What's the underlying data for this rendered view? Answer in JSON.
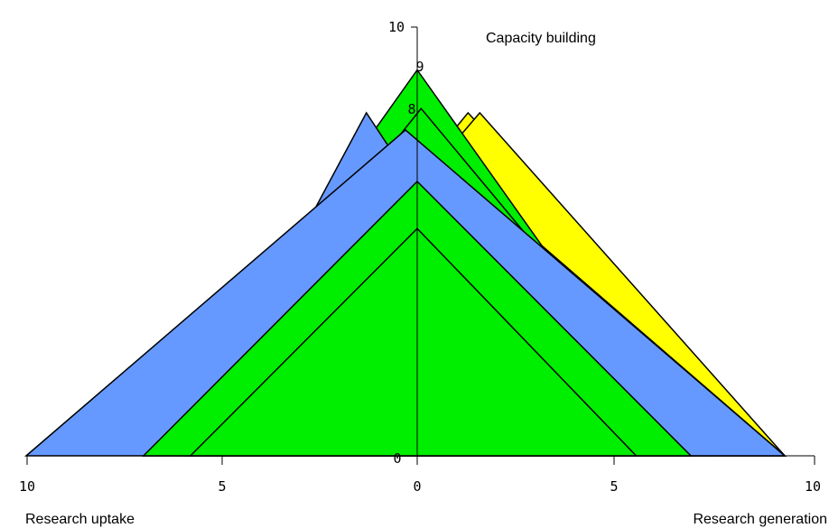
{
  "chart_data": {
    "type": "area",
    "axes": {
      "vertical": {
        "label": "Capacity building",
        "ticks": [
          "10",
          "9",
          "8",
          "0"
        ],
        "range": [
          0,
          10
        ]
      },
      "left": {
        "label": "Research uptake",
        "ticks": [
          "10",
          "5",
          "0"
        ],
        "range": [
          0,
          10
        ]
      },
      "right": {
        "label": "Research generation",
        "ticks": [
          "0",
          "5",
          "10"
        ],
        "range": [
          0,
          10
        ]
      }
    },
    "triangles": [
      {
        "color": "#ffff00",
        "research_uptake": 5.9,
        "capacity_building": 8.0,
        "research_generation": 9.4,
        "peak_offset": 1.3
      },
      {
        "color": "#ffff00",
        "research_uptake": 5.9,
        "capacity_building": 8.0,
        "research_generation": 9.4,
        "peak_offset": 1.6
      },
      {
        "color": "#ffff00",
        "research_uptake": 5.9,
        "capacity_building": 7.1,
        "research_generation": 9.4,
        "peak_offset": 0.4
      },
      {
        "color": "#00ee00",
        "research_uptake": 7.0,
        "capacity_building": 9.0,
        "research_generation": 7.0,
        "peak_offset": 0.0
      },
      {
        "color": "#00ee00",
        "research_uptake": 7.0,
        "capacity_building": 8.1,
        "research_generation": 7.5,
        "peak_offset": 0.1
      },
      {
        "color": "#6699ff",
        "research_uptake": 6.0,
        "capacity_building": 8.0,
        "research_generation": 4.5,
        "peak_offset": -1.3
      },
      {
        "color": "#6699ff",
        "research_uptake": 10.0,
        "capacity_building": 7.6,
        "research_generation": 9.4,
        "peak_offset": -0.3
      },
      {
        "color": "#00ee00",
        "research_uptake": 7.0,
        "capacity_building": 6.4,
        "research_generation": 7.0,
        "peak_offset": 0.0
      },
      {
        "color": "#00ee00",
        "research_uptake": 5.8,
        "capacity_building": 5.3,
        "research_generation": 5.6,
        "peak_offset": 0.0
      }
    ]
  }
}
